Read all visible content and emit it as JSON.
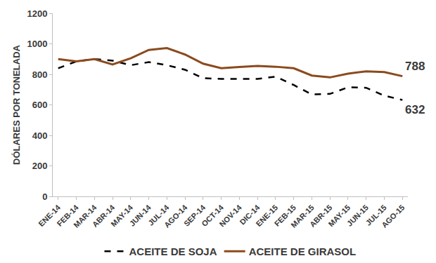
{
  "chart_data": {
    "type": "line",
    "y_label": "DÓLARES POR TONELADA",
    "categories": [
      "ENE-14",
      "FEB-14",
      "MAR-14",
      "ABR-14",
      "MAY-14",
      "JUN-14",
      "JUL-14",
      "AGO-14",
      "SEP-14",
      "OCT-14",
      "NOV-14",
      "DIC-14",
      "ENE-15",
      "FEB-15",
      "MAR-15",
      "ABR-15",
      "MAY-15",
      "JUN-15",
      "JUL-15",
      "AGO-15"
    ],
    "series": [
      {
        "name": "ACEITE DE SOJA",
        "color": "#000000",
        "line_style": "dash",
        "values": [
          840,
          885,
          900,
          890,
          860,
          880,
          860,
          830,
          775,
          770,
          770,
          770,
          785,
          730,
          668,
          672,
          715,
          712,
          660,
          632
        ]
      },
      {
        "name": "ACEITE DE GIRASOL",
        "color": "#8b4a1e",
        "line_style": "solid",
        "values": [
          900,
          885,
          900,
          865,
          905,
          960,
          972,
          930,
          870,
          840,
          848,
          855,
          850,
          840,
          792,
          780,
          805,
          820,
          815,
          788
        ]
      }
    ],
    "annotations": [
      {
        "text": "788",
        "series": "ACEITE DE GIRASOL"
      },
      {
        "text": "632",
        "series": "ACEITE DE SOJA"
      }
    ],
    "ylim": [
      0,
      1200
    ],
    "yticks": [
      0,
      200,
      400,
      600,
      800,
      1000,
      1200
    ],
    "grid": false,
    "legend": "bottom"
  }
}
